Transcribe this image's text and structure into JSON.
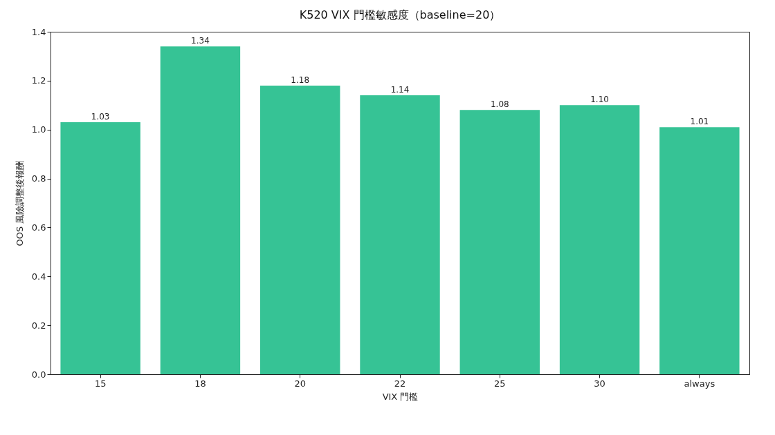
{
  "chart_data": {
    "type": "bar",
    "title": "K520 VIX 門檻敏感度（baseline=20）",
    "xlabel": "VIX 門檻",
    "ylabel": "OOS 風險調整後報酬",
    "categories": [
      "15",
      "18",
      "20",
      "22",
      "25",
      "30",
      "always"
    ],
    "values": [
      1.03,
      1.34,
      1.18,
      1.14,
      1.08,
      1.1,
      1.01
    ],
    "value_labels": [
      "1.03",
      "1.34",
      "1.18",
      "1.14",
      "1.08",
      "1.10",
      "1.01"
    ],
    "color": "#36c395",
    "ylim": [
      0,
      1.4
    ],
    "yticks": [
      {
        "value": 0,
        "label": "0.0"
      },
      {
        "value": 0.2,
        "label": "0.2"
      },
      {
        "value": 0.4,
        "label": "0.4"
      },
      {
        "value": 0.6,
        "label": "0.6"
      },
      {
        "value": 0.8,
        "label": "0.8"
      },
      {
        "value": 1,
        "label": "1.0"
      },
      {
        "value": 1.2,
        "label": "1.2"
      },
      {
        "value": 1.4,
        "label": "1.4"
      }
    ],
    "grid": false
  }
}
